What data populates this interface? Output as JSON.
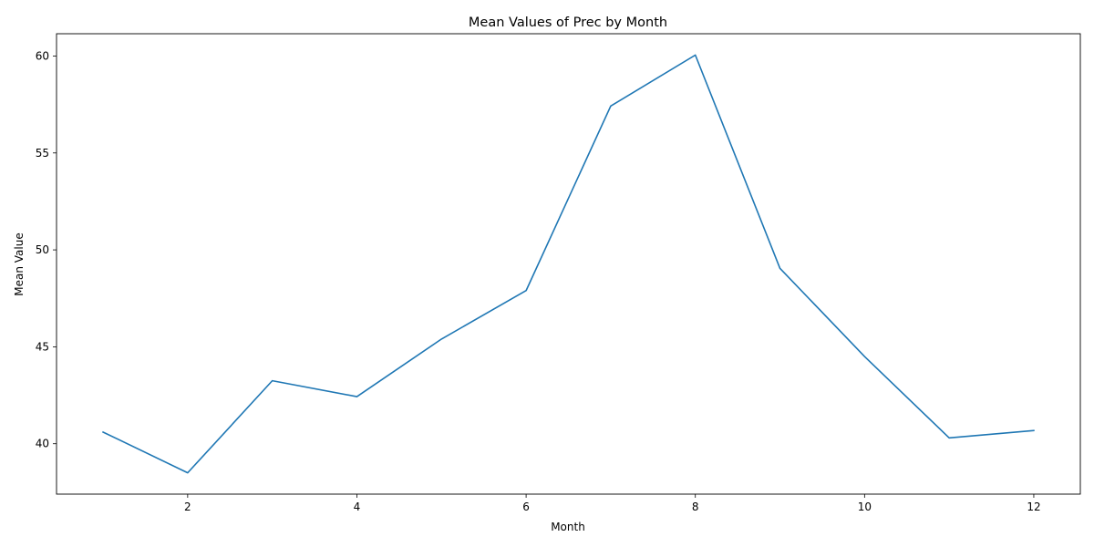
{
  "chart_data": {
    "type": "line",
    "title": "Mean Values of Prec by Month",
    "xlabel": "Month",
    "ylabel": "Mean Value",
    "xlim": [
      0.45,
      12.55
    ],
    "ylim": [
      37.4,
      61.15
    ],
    "xticks": [
      2,
      4,
      6,
      8,
      10,
      12
    ],
    "yticks": [
      40,
      45,
      50,
      55,
      60
    ],
    "grid": false,
    "series": [
      {
        "color": "#1f77b4",
        "x": [
          1,
          2,
          3,
          4,
          5,
          6,
          7,
          8,
          9,
          10,
          11,
          12
        ],
        "y": [
          40.6,
          38.5,
          43.25,
          42.43,
          45.4,
          47.9,
          57.42,
          60.05,
          49.05,
          44.5,
          40.3,
          40.68
        ]
      }
    ]
  }
}
